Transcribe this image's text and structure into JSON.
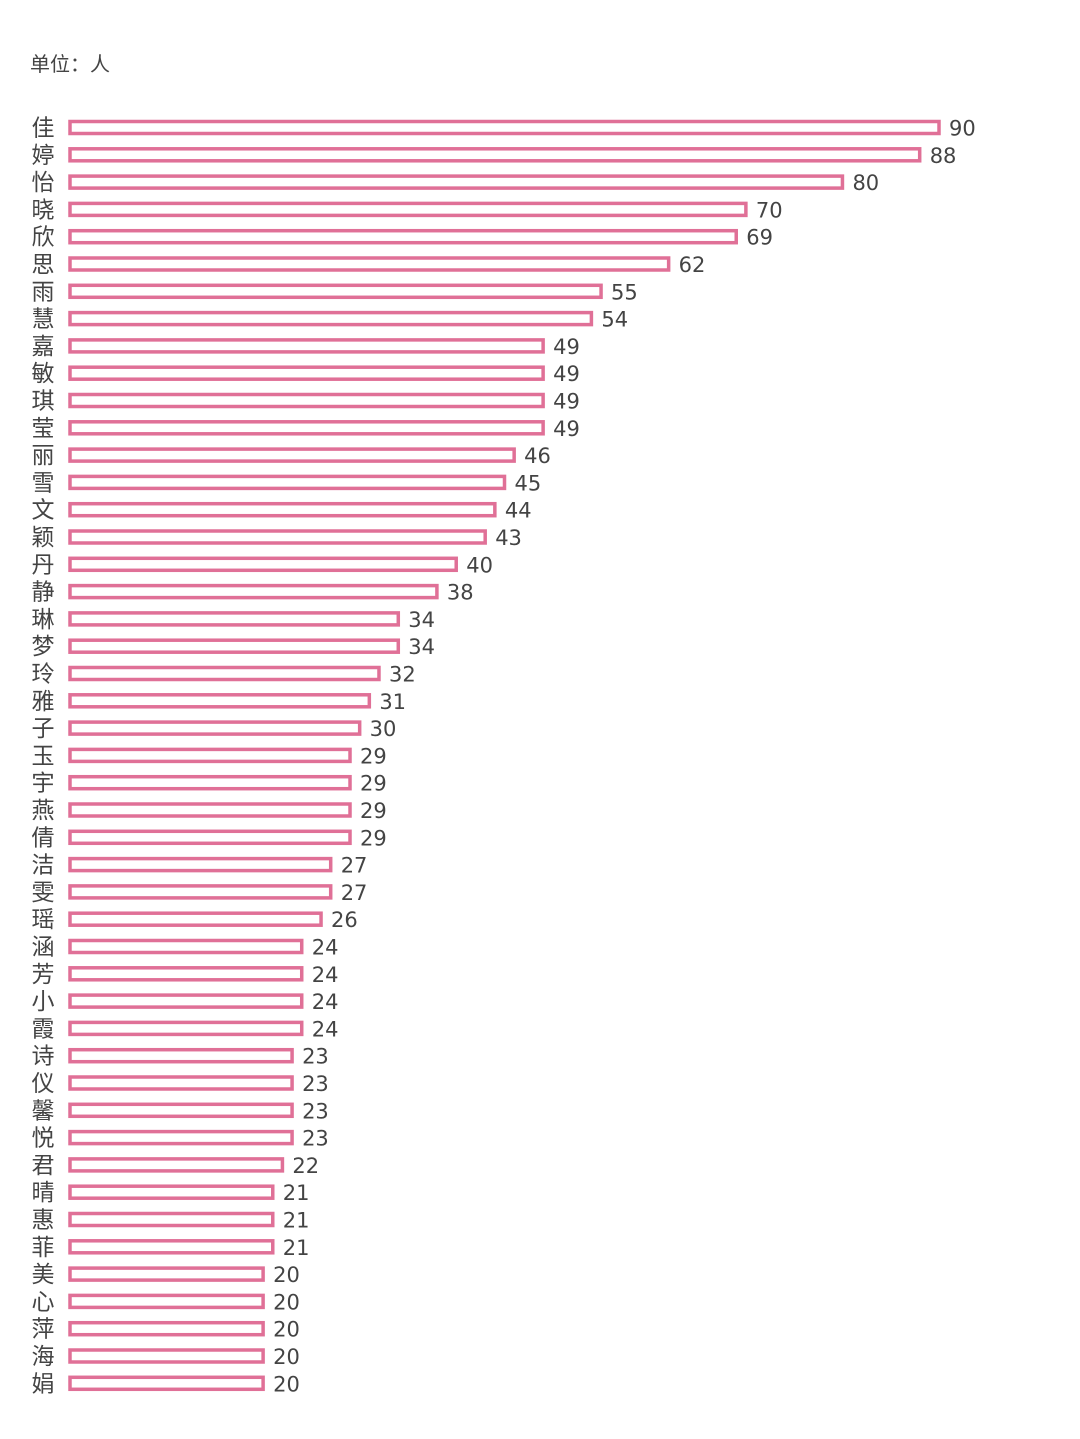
{
  "unit_label": "单位：人",
  "colors": {
    "bar_stroke": "#e07097",
    "bar_fill": "#ffffff",
    "label_text": "#444444",
    "value_text": "#444444"
  },
  "chart_data": {
    "type": "bar",
    "orientation": "horizontal",
    "title": "",
    "unit": "单位：人",
    "xlabel": "",
    "ylabel": "",
    "grid": false,
    "legend": "none",
    "xlim": [
      0,
      90
    ],
    "categories": [
      "佳",
      "婷",
      "怡",
      "晓",
      "欣",
      "思",
      "雨",
      "慧",
      "嘉",
      "敏",
      "琪",
      "莹",
      "丽",
      "雪",
      "文",
      "颖",
      "丹",
      "静",
      "琳",
      "梦",
      "玲",
      "雅",
      "子",
      "玉",
      "宇",
      "燕",
      "倩",
      "洁",
      "雯",
      "瑶",
      "涵",
      "芳",
      "小",
      "霞",
      "诗",
      "仪",
      "馨",
      "悦",
      "君",
      "晴",
      "惠",
      "菲",
      "美",
      "心",
      "萍",
      "海",
      "娟"
    ],
    "values": [
      90,
      88,
      80,
      70,
      69,
      62,
      55,
      54,
      49,
      49,
      49,
      49,
      46,
      45,
      44,
      43,
      40,
      38,
      34,
      34,
      32,
      31,
      30,
      29,
      29,
      29,
      29,
      27,
      27,
      26,
      24,
      24,
      24,
      24,
      23,
      23,
      23,
      23,
      22,
      21,
      21,
      21,
      20,
      20,
      20,
      20,
      20
    ]
  }
}
